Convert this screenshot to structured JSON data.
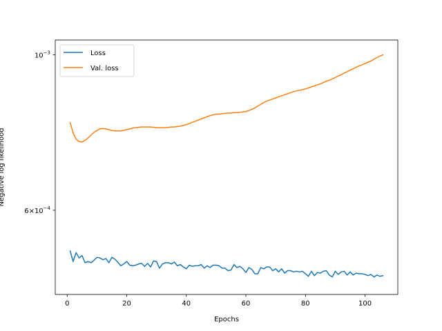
{
  "chart_data": {
    "type": "line",
    "title": "",
    "xlabel": "Epochs",
    "ylabel": "Negative log likelihood",
    "yscale": "log",
    "xlim": [
      -4,
      111
    ],
    "ylim": [
      0.000455,
      0.00105
    ],
    "xticks": [
      0,
      20,
      40,
      60,
      80,
      100
    ],
    "xtick_labels": [
      "0",
      "20",
      "40",
      "60",
      "80",
      "100"
    ],
    "yticks": [
      0.0006,
      0.001
    ],
    "ytick_labels": [
      {
        "mantissa": "6",
        "exp": "−4"
      },
      {
        "mantissa": "",
        "exp": "−3"
      }
    ],
    "grid": false,
    "legend_position": "upper-left",
    "series": [
      {
        "name": "Loss",
        "color": "#1f77b4",
        "x": [
          1,
          2,
          3,
          4,
          5,
          6,
          7,
          8,
          9,
          10,
          11,
          12,
          13,
          14,
          15,
          16,
          17,
          18,
          19,
          20,
          21,
          22,
          23,
          24,
          25,
          26,
          27,
          28,
          29,
          30,
          31,
          32,
          33,
          34,
          35,
          36,
          37,
          38,
          39,
          40,
          41,
          42,
          43,
          44,
          45,
          46,
          47,
          48,
          49,
          50,
          51,
          52,
          53,
          54,
          55,
          56,
          57,
          58,
          59,
          60,
          61,
          62,
          63,
          64,
          65,
          66,
          67,
          68,
          69,
          70,
          71,
          72,
          73,
          74,
          75,
          76,
          77,
          78,
          79,
          80,
          81,
          82,
          83,
          84,
          85,
          86,
          87,
          88,
          89,
          90,
          91,
          92,
          93,
          94,
          95,
          96,
          97,
          98,
          99,
          100,
          101,
          102,
          103,
          104,
          105,
          106
        ],
        "values": [
          0.000525,
          0.000507,
          0.000522,
          0.000513,
          0.000517,
          0.000505,
          0.000507,
          0.000505,
          0.000509,
          0.000514,
          0.000513,
          0.00051,
          0.000512,
          0.000505,
          0.000514,
          0.000511,
          0.000506,
          0.0005,
          0.000503,
          0.000507,
          0.000501,
          0.0005,
          0.000501,
          0.000503,
          0.000504,
          0.000499,
          0.000504,
          0.000498,
          0.000508,
          0.000507,
          0.000496,
          0.000503,
          0.000505,
          0.000505,
          0.000503,
          0.000506,
          0.0005,
          0.000502,
          0.000498,
          0.000495,
          0.000501,
          0.000499,
          0.0005,
          0.0005,
          0.000502,
          0.000496,
          0.0005,
          0.000497,
          0.000501,
          0.000501,
          0.0005,
          0.000496,
          0.000496,
          0.000492,
          0.000493,
          0.000502,
          0.000497,
          0.000499,
          0.000495,
          0.000489,
          0.000497,
          0.000494,
          0.000487,
          0.000487,
          0.000497,
          0.000495,
          0.000498,
          0.000498,
          0.000492,
          0.000495,
          0.00049,
          0.000495,
          0.000488,
          0.000492,
          0.000492,
          0.00049,
          0.000491,
          0.00049,
          0.000491,
          0.000487,
          0.000483,
          0.000491,
          0.000484,
          0.000489,
          0.000488,
          0.000491,
          0.000492,
          0.000485,
          0.000482,
          0.000491,
          0.000486,
          0.00049,
          0.000491,
          0.000485,
          0.00049,
          0.000485,
          0.000488,
          0.000487,
          0.000487,
          0.000486,
          0.000484,
          0.000486,
          0.000482,
          0.000485,
          0.000483,
          0.000484
        ]
      },
      {
        "name": "Val. loss",
        "color": "#ff7f0e",
        "x": [
          1,
          2,
          3,
          4,
          5,
          6,
          7,
          8,
          9,
          10,
          11,
          12,
          13,
          14,
          15,
          16,
          17,
          18,
          19,
          20,
          21,
          22,
          23,
          24,
          25,
          26,
          27,
          28,
          29,
          30,
          31,
          32,
          33,
          34,
          35,
          36,
          37,
          38,
          39,
          40,
          41,
          42,
          43,
          44,
          45,
          46,
          47,
          48,
          49,
          50,
          51,
          52,
          53,
          54,
          55,
          56,
          57,
          58,
          59,
          60,
          61,
          62,
          63,
          64,
          65,
          66,
          67,
          68,
          69,
          70,
          71,
          72,
          73,
          74,
          75,
          76,
          77,
          78,
          79,
          80,
          81,
          82,
          83,
          84,
          85,
          86,
          87,
          88,
          89,
          90,
          91,
          92,
          93,
          94,
          95,
          96,
          97,
          98,
          99,
          100,
          101,
          102,
          103,
          104,
          105,
          106
        ],
        "values": [
          0.0008,
          0.000774,
          0.000758,
          0.000752,
          0.000751,
          0.000755,
          0.000761,
          0.000768,
          0.000775,
          0.00078,
          0.000784,
          0.000785,
          0.000784,
          0.000782,
          0.00078,
          0.000779,
          0.000779,
          0.000779,
          0.00078,
          0.000782,
          0.000784,
          0.000786,
          0.000787,
          0.000788,
          0.000789,
          0.000789,
          0.000789,
          0.000789,
          0.000788,
          0.000787,
          0.000787,
          0.000787,
          0.000787,
          0.000788,
          0.000789,
          0.000789,
          0.00079,
          0.000791,
          0.000793,
          0.000795,
          0.000798,
          0.000801,
          0.000804,
          0.000807,
          0.00081,
          0.000813,
          0.000816,
          0.000819,
          0.000821,
          0.000823,
          0.000823,
          0.000824,
          0.000825,
          0.000826,
          0.000826,
          0.000827,
          0.000827,
          0.000828,
          0.000829,
          0.00083,
          0.000833,
          0.000836,
          0.00084,
          0.000845,
          0.00085,
          0.000855,
          0.000859,
          0.000862,
          0.000865,
          0.000868,
          0.000871,
          0.000874,
          0.000877,
          0.00088,
          0.000883,
          0.000886,
          0.000888,
          0.00089,
          0.000892,
          0.000894,
          0.000897,
          0.0009,
          0.000903,
          0.000906,
          0.000909,
          0.000913,
          0.000917,
          0.00092,
          0.000924,
          0.000928,
          0.000933,
          0.000937,
          0.000942,
          0.000946,
          0.000951,
          0.000955,
          0.00096,
          0.000964,
          0.000968,
          0.000972,
          0.000976,
          0.00098,
          0.000986,
          0.000991,
          0.000996,
          0.001
        ]
      }
    ]
  }
}
